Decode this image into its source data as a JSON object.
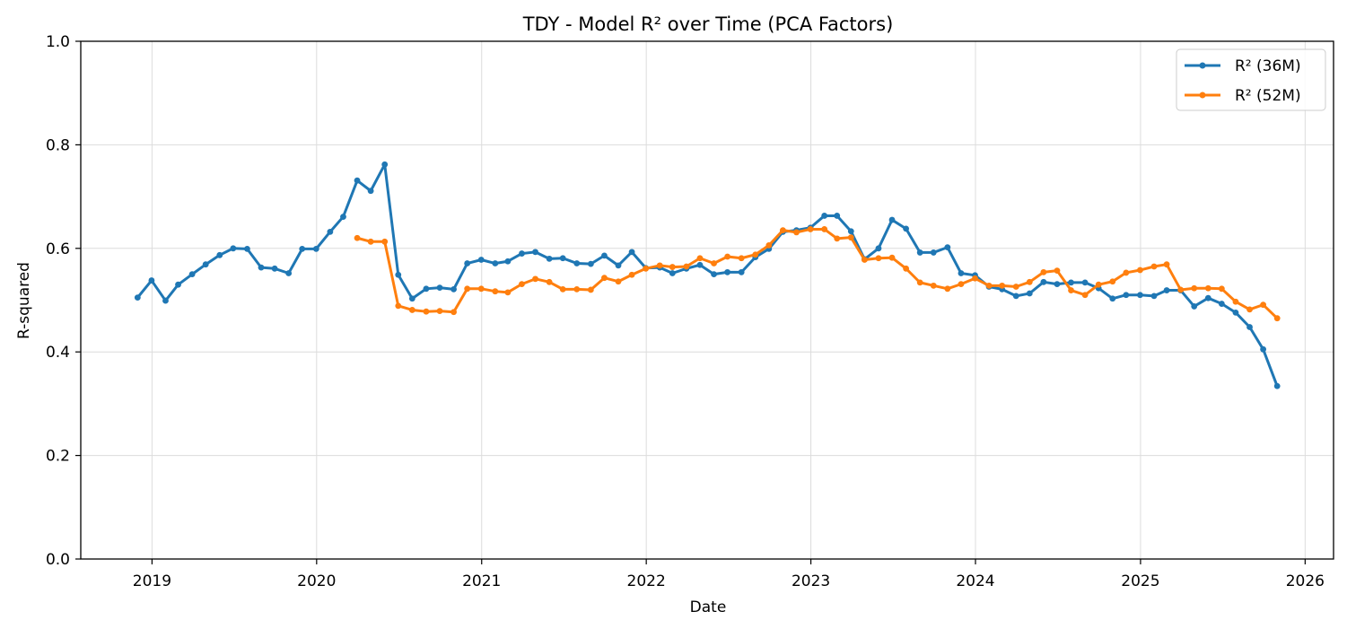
{
  "chart_data": {
    "type": "line",
    "title": "TDY - Model R² over Time (PCA Factors)",
    "xlabel": "Date",
    "ylabel": "R-squared",
    "xlim": [
      "2018-07-27",
      "2026-03-05"
    ],
    "ylim": [
      0,
      1
    ],
    "x_ticks": [
      "2019",
      "2020",
      "2021",
      "2022",
      "2023",
      "2024",
      "2025",
      "2026"
    ],
    "y_ticks": [
      "0.0",
      "0.2",
      "0.4",
      "0.6",
      "0.8",
      "1.0"
    ],
    "grid": true,
    "legend_position": "top-right",
    "series": [
      {
        "name": "R² (36M)",
        "color": "#1f77b4",
        "points": [
          [
            "2018-11-30",
            0.505
          ],
          [
            "2018-12-31",
            0.538
          ],
          [
            "2019-01-31",
            0.499
          ],
          [
            "2019-02-28",
            0.53
          ],
          [
            "2019-03-31",
            0.55
          ],
          [
            "2019-04-30",
            0.569
          ],
          [
            "2019-05-31",
            0.587
          ],
          [
            "2019-06-30",
            0.6
          ],
          [
            "2019-07-31",
            0.599
          ],
          [
            "2019-08-31",
            0.563
          ],
          [
            "2019-09-30",
            0.561
          ],
          [
            "2019-10-31",
            0.552
          ],
          [
            "2019-11-30",
            0.599
          ],
          [
            "2019-12-31",
            0.599
          ],
          [
            "2020-01-31",
            0.632
          ],
          [
            "2020-02-29",
            0.661
          ],
          [
            "2020-03-31",
            0.731
          ],
          [
            "2020-04-30",
            0.711
          ],
          [
            "2020-05-31",
            0.762
          ],
          [
            "2020-06-30",
            0.549
          ],
          [
            "2020-07-31",
            0.503
          ],
          [
            "2020-08-31",
            0.522
          ],
          [
            "2020-09-30",
            0.524
          ],
          [
            "2020-10-31",
            0.521
          ],
          [
            "2020-11-30",
            0.571
          ],
          [
            "2020-12-31",
            0.578
          ],
          [
            "2021-01-31",
            0.571
          ],
          [
            "2021-02-28",
            0.575
          ],
          [
            "2021-03-31",
            0.59
          ],
          [
            "2021-04-30",
            0.593
          ],
          [
            "2021-05-31",
            0.58
          ],
          [
            "2021-06-30",
            0.581
          ],
          [
            "2021-07-31",
            0.571
          ],
          [
            "2021-08-31",
            0.57
          ],
          [
            "2021-09-30",
            0.586
          ],
          [
            "2021-10-31",
            0.567
          ],
          [
            "2021-11-30",
            0.593
          ],
          [
            "2021-12-31",
            0.562
          ],
          [
            "2022-01-31",
            0.563
          ],
          [
            "2022-02-28",
            0.552
          ],
          [
            "2022-03-31",
            0.561
          ],
          [
            "2022-04-30",
            0.568
          ],
          [
            "2022-05-31",
            0.55
          ],
          [
            "2022-06-30",
            0.554
          ],
          [
            "2022-07-31",
            0.554
          ],
          [
            "2022-08-31",
            0.583
          ],
          [
            "2022-09-30",
            0.599
          ],
          [
            "2022-10-31",
            0.632
          ],
          [
            "2022-11-30",
            0.635
          ],
          [
            "2022-12-31",
            0.64
          ],
          [
            "2023-01-31",
            0.663
          ],
          [
            "2023-02-28",
            0.663
          ],
          [
            "2023-03-31",
            0.633
          ],
          [
            "2023-04-30",
            0.579
          ],
          [
            "2023-05-31",
            0.6
          ],
          [
            "2023-06-30",
            0.655
          ],
          [
            "2023-07-31",
            0.638
          ],
          [
            "2023-08-31",
            0.592
          ],
          [
            "2023-09-30",
            0.592
          ],
          [
            "2023-10-31",
            0.602
          ],
          [
            "2023-11-30",
            0.552
          ],
          [
            "2023-12-31",
            0.548
          ],
          [
            "2024-01-31",
            0.526
          ],
          [
            "2024-02-29",
            0.521
          ],
          [
            "2024-03-31",
            0.508
          ],
          [
            "2024-04-30",
            0.513
          ],
          [
            "2024-05-31",
            0.535
          ],
          [
            "2024-06-30",
            0.531
          ],
          [
            "2024-07-31",
            0.534
          ],
          [
            "2024-08-31",
            0.534
          ],
          [
            "2024-09-30",
            0.523
          ],
          [
            "2024-10-31",
            0.503
          ],
          [
            "2024-11-30",
            0.51
          ],
          [
            "2024-12-31",
            0.51
          ],
          [
            "2025-01-31",
            0.508
          ],
          [
            "2025-02-28",
            0.519
          ],
          [
            "2025-03-31",
            0.519
          ],
          [
            "2025-04-30",
            0.488
          ],
          [
            "2025-05-31",
            0.504
          ],
          [
            "2025-06-30",
            0.493
          ],
          [
            "2025-07-31",
            0.476
          ],
          [
            "2025-08-31",
            0.448
          ],
          [
            "2025-09-30",
            0.405
          ],
          [
            "2025-10-31",
            0.334
          ]
        ]
      },
      {
        "name": "R² (52M)",
        "color": "#ff7f0e",
        "points": [
          [
            "2020-03-31",
            0.62
          ],
          [
            "2020-04-30",
            0.613
          ],
          [
            "2020-05-31",
            0.613
          ],
          [
            "2020-06-30",
            0.489
          ],
          [
            "2020-07-31",
            0.481
          ],
          [
            "2020-08-31",
            0.478
          ],
          [
            "2020-09-30",
            0.479
          ],
          [
            "2020-10-31",
            0.477
          ],
          [
            "2020-11-30",
            0.522
          ],
          [
            "2020-12-31",
            0.522
          ],
          [
            "2021-01-31",
            0.517
          ],
          [
            "2021-02-28",
            0.515
          ],
          [
            "2021-03-31",
            0.531
          ],
          [
            "2021-04-30",
            0.541
          ],
          [
            "2021-05-31",
            0.535
          ],
          [
            "2021-06-30",
            0.521
          ],
          [
            "2021-07-31",
            0.521
          ],
          [
            "2021-08-31",
            0.52
          ],
          [
            "2021-09-30",
            0.543
          ],
          [
            "2021-10-31",
            0.536
          ],
          [
            "2021-11-30",
            0.549
          ],
          [
            "2021-12-31",
            0.561
          ],
          [
            "2022-01-31",
            0.567
          ],
          [
            "2022-02-28",
            0.564
          ],
          [
            "2022-03-31",
            0.565
          ],
          [
            "2022-04-30",
            0.581
          ],
          [
            "2022-05-31",
            0.571
          ],
          [
            "2022-06-30",
            0.584
          ],
          [
            "2022-07-31",
            0.581
          ],
          [
            "2022-08-31",
            0.588
          ],
          [
            "2022-09-30",
            0.606
          ],
          [
            "2022-10-31",
            0.635
          ],
          [
            "2022-11-30",
            0.631
          ],
          [
            "2022-12-31",
            0.637
          ],
          [
            "2023-01-31",
            0.637
          ],
          [
            "2023-02-28",
            0.619
          ],
          [
            "2023-03-31",
            0.621
          ],
          [
            "2023-04-30",
            0.578
          ],
          [
            "2023-05-31",
            0.581
          ],
          [
            "2023-06-30",
            0.582
          ],
          [
            "2023-07-31",
            0.561
          ],
          [
            "2023-08-31",
            0.534
          ],
          [
            "2023-09-30",
            0.528
          ],
          [
            "2023-10-31",
            0.522
          ],
          [
            "2023-11-30",
            0.531
          ],
          [
            "2023-12-31",
            0.542
          ],
          [
            "2024-01-31",
            0.528
          ],
          [
            "2024-02-29",
            0.528
          ],
          [
            "2024-03-31",
            0.526
          ],
          [
            "2024-04-30",
            0.535
          ],
          [
            "2024-05-31",
            0.554
          ],
          [
            "2024-06-30",
            0.557
          ],
          [
            "2024-07-31",
            0.519
          ],
          [
            "2024-08-31",
            0.51
          ],
          [
            "2024-09-30",
            0.53
          ],
          [
            "2024-10-31",
            0.536
          ],
          [
            "2024-11-30",
            0.553
          ],
          [
            "2024-12-31",
            0.558
          ],
          [
            "2025-01-31",
            0.565
          ],
          [
            "2025-02-28",
            0.569
          ],
          [
            "2025-03-31",
            0.52
          ],
          [
            "2025-04-30",
            0.523
          ],
          [
            "2025-05-31",
            0.523
          ],
          [
            "2025-06-30",
            0.522
          ],
          [
            "2025-07-31",
            0.497
          ],
          [
            "2025-08-31",
            0.482
          ],
          [
            "2025-09-30",
            0.491
          ],
          [
            "2025-10-31",
            0.465
          ]
        ]
      }
    ]
  }
}
